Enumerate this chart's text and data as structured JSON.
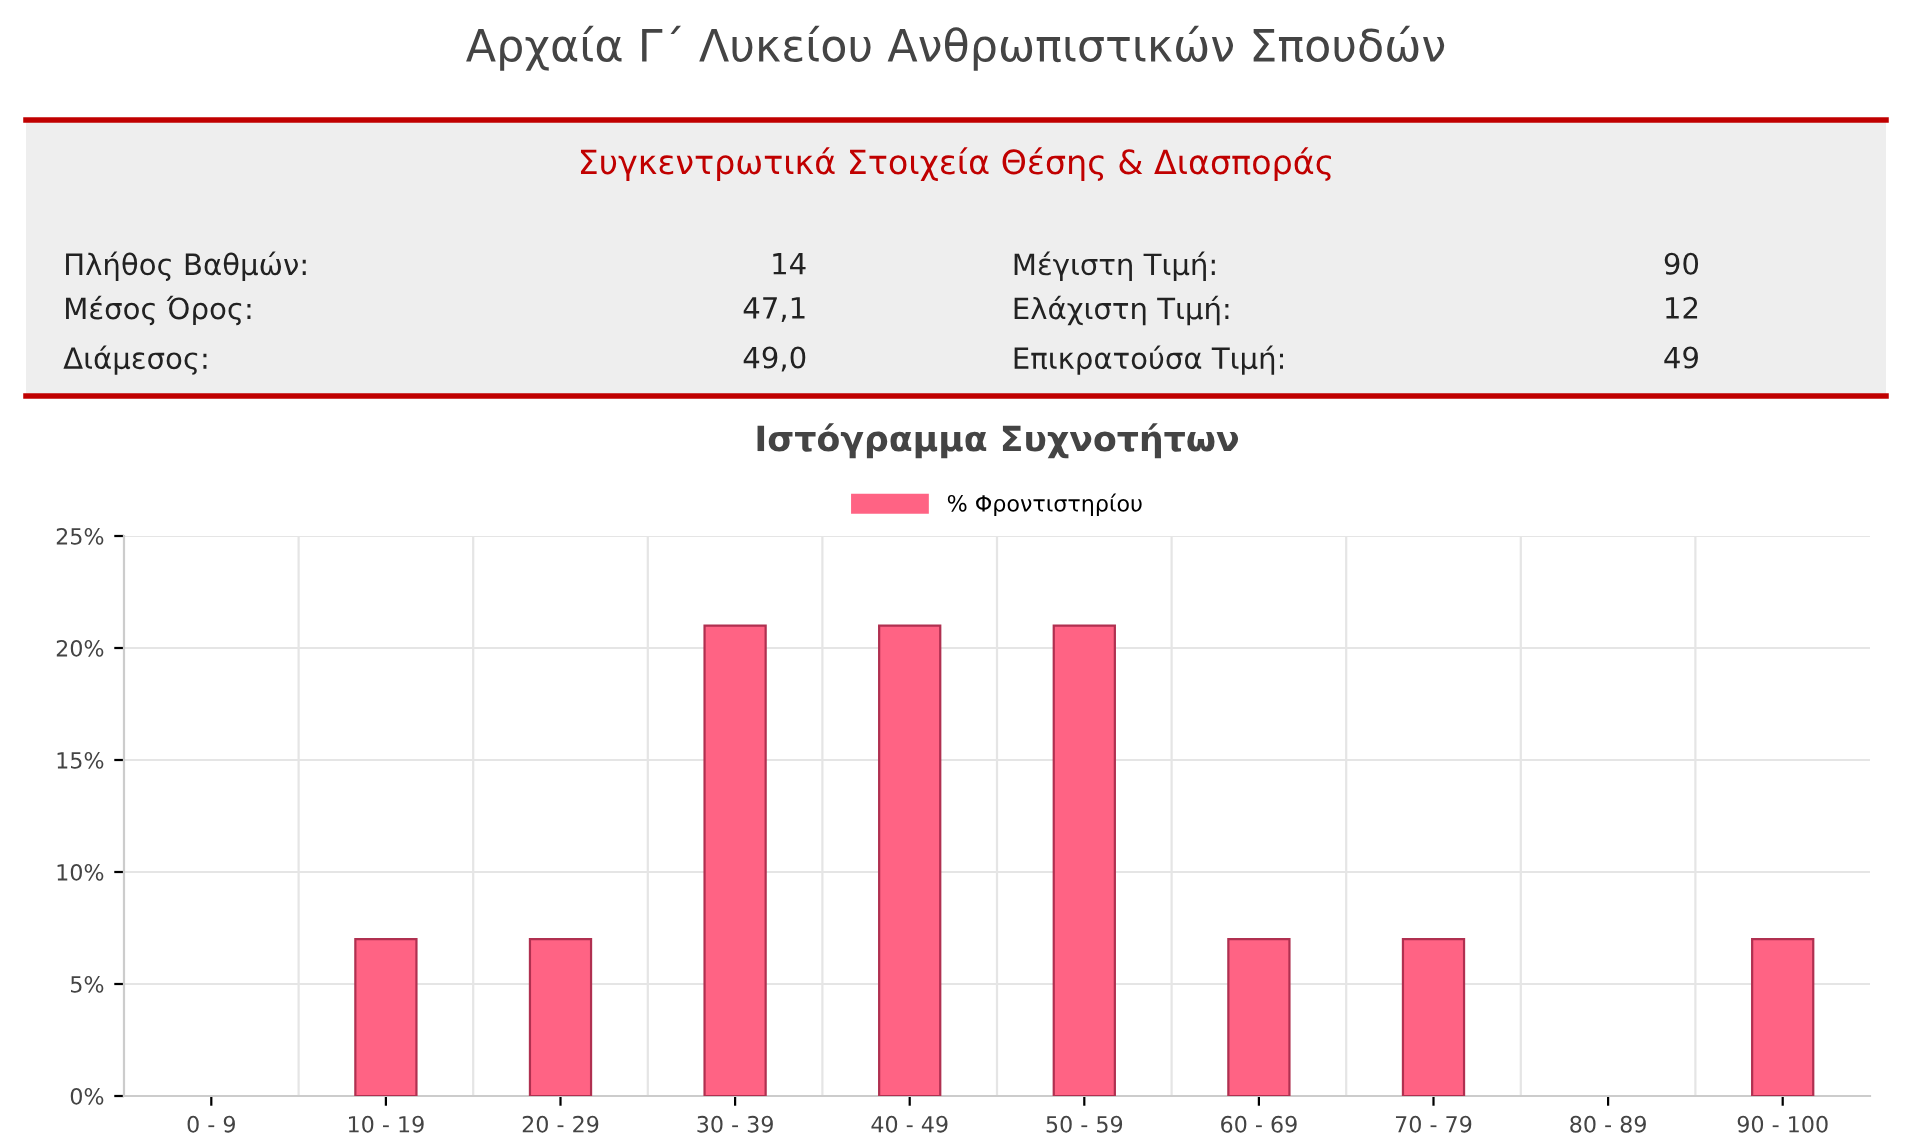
{
  "chart_data": [
    {
      "type": "other",
      "title": "Αρχαία Γ΄ Λυκείου Ανθρωπιστικών Σπουδών",
      "subtitle": "Συγκεντρωτικά Στοιχεία Θέσης & Διασποράς",
      "annotations": [
        "Πλήθος Βαθμών:",
        "14",
        "Μέσος Όρος:",
        "47,1",
        "Διάμεσος:",
        "49,0",
        "Μέγιστη Τιμή:",
        "90",
        "Ελάχιστη Τιμή:",
        "12",
        "Επικρατούσα Τιμή:",
        "49"
      ]
    },
    {
      "type": "bar",
      "title": "Ιστόγραμμα Συχνοτήτων",
      "categories": [
        "0 - 9",
        "10 - 19",
        "20 - 29",
        "30 - 39",
        "40 - 49",
        "50 - 59",
        "60 - 69",
        "70 - 79",
        "80 - 89",
        "90 - 100"
      ],
      "series": [
        {
          "name": "% Φροντιστηρίου",
          "color": "#ff6384",
          "values": [
            0,
            7,
            7,
            21,
            21,
            21,
            7,
            7,
            0,
            7
          ]
        }
      ],
      "ylim": [
        0,
        25
      ],
      "yticks": [
        {
          "value": 0,
          "label": "0%"
        },
        {
          "value": 5,
          "label": "5%"
        },
        {
          "value": 10,
          "label": "10%"
        },
        {
          "value": 15,
          "label": "15%"
        },
        {
          "value": 20,
          "label": "20%"
        },
        {
          "value": 25,
          "label": "25%"
        }
      ],
      "grid": true,
      "legend": "top"
    }
  ]
}
